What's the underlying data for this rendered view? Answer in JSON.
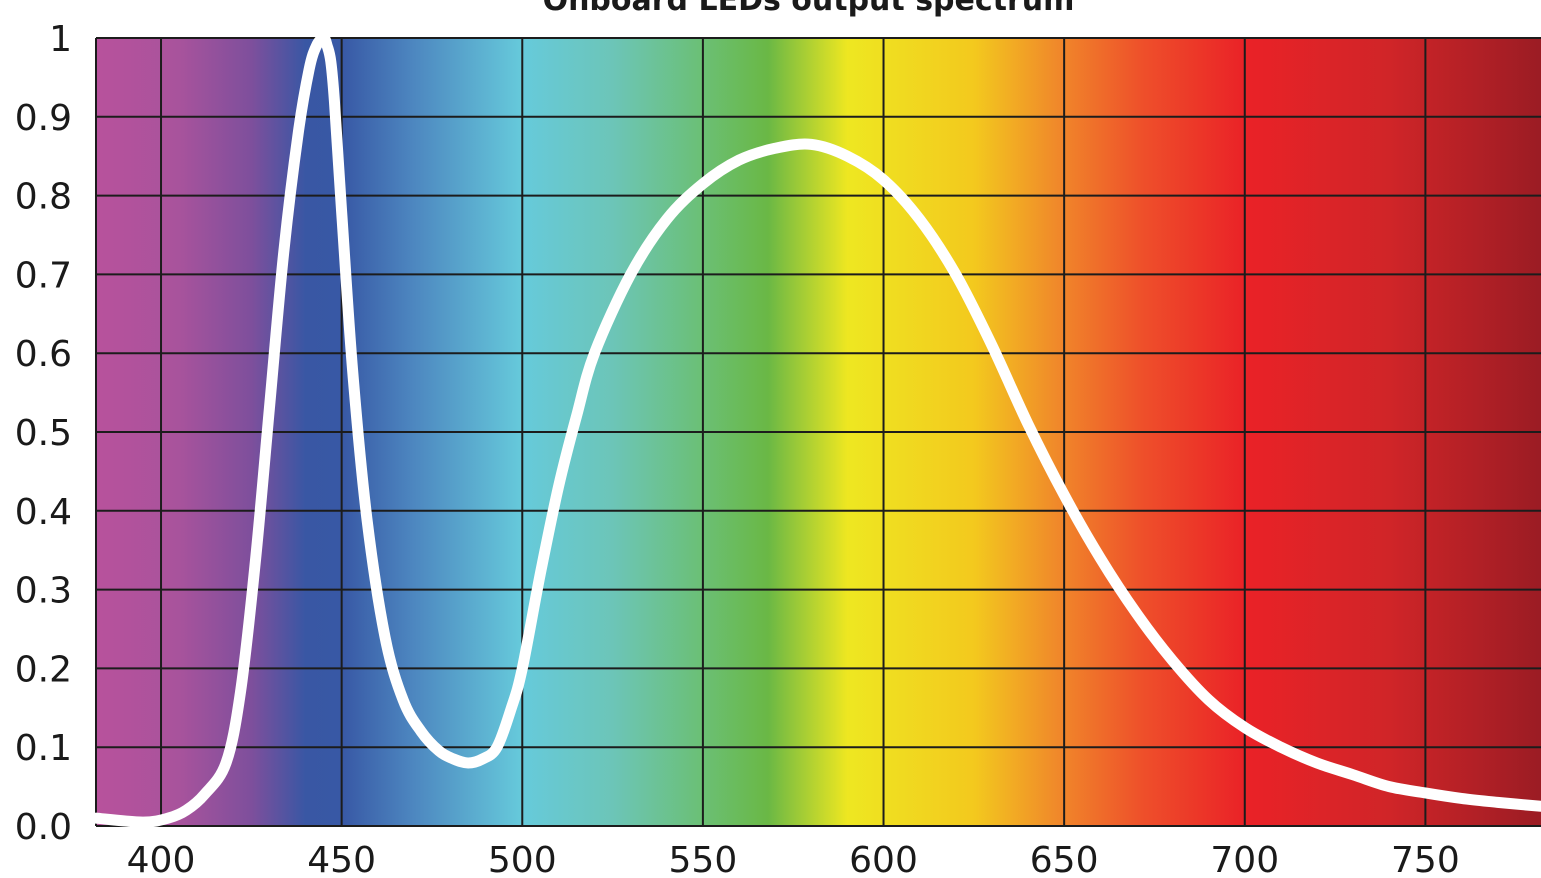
{
  "chart_data": {
    "type": "line",
    "title": "Onboard LEDs output spectrum",
    "xlabel": "",
    "ylabel": "",
    "xlim": [
      382,
      782
    ],
    "ylim": [
      0,
      1
    ],
    "x_ticks": [
      400,
      450,
      500,
      550,
      600,
      650,
      700,
      750
    ],
    "y_ticks": [
      0,
      0.1,
      0.2,
      0.3,
      0.4,
      0.5,
      0.6,
      0.7,
      0.8,
      0.9,
      1
    ],
    "y_tick_labels": [
      "0.0",
      "0.1",
      "0.2",
      "0.3",
      "0.4",
      "0.5",
      "0.6",
      "0.7",
      "0.8",
      "0.9",
      "1"
    ],
    "grid": true,
    "legend": "none",
    "background": "visible light spectrum gradient (violet to deep red)",
    "spectrum_colors": [
      {
        "nm": 382,
        "color": "#b8529c"
      },
      {
        "nm": 405,
        "color": "#a8539c"
      },
      {
        "nm": 425,
        "color": "#7e4f9c"
      },
      {
        "nm": 440,
        "color": "#3957a4"
      },
      {
        "nm": 450,
        "color": "#3858a5"
      },
      {
        "nm": 470,
        "color": "#4d87c0"
      },
      {
        "nm": 500,
        "color": "#66cadb"
      },
      {
        "nm": 525,
        "color": "#6cc5b8"
      },
      {
        "nm": 548,
        "color": "#6bc07a"
      },
      {
        "nm": 568,
        "color": "#6ab845"
      },
      {
        "nm": 590,
        "color": "#eee721"
      },
      {
        "nm": 625,
        "color": "#f3c91e"
      },
      {
        "nm": 648,
        "color": "#f0892a"
      },
      {
        "nm": 672,
        "color": "#ee4f2a"
      },
      {
        "nm": 700,
        "color": "#ea2227"
      },
      {
        "nm": 740,
        "color": "#d02528"
      },
      {
        "nm": 782,
        "color": "#9b1c24"
      }
    ],
    "series": [
      {
        "color": "#ffffff",
        "x": [
          382,
          395,
          402,
          407,
          412,
          418,
          422,
          426,
          430,
          434,
          438,
          441,
          443,
          445,
          446,
          447,
          448,
          450,
          453,
          457,
          462,
          467,
          472,
          477,
          481,
          485,
          489,
          493,
          497,
          500,
          505,
          510,
          515,
          520,
          530,
          540,
          550,
          560,
          570,
          580,
          590,
          600,
          610,
          620,
          630,
          640,
          650,
          660,
          670,
          680,
          690,
          700,
          710,
          720,
          730,
          740,
          750,
          760,
          770,
          782
        ],
        "y": [
          0.01,
          0.005,
          0.01,
          0.02,
          0.04,
          0.08,
          0.17,
          0.33,
          0.53,
          0.73,
          0.88,
          0.96,
          0.99,
          1.0,
          0.99,
          0.97,
          0.92,
          0.78,
          0.58,
          0.39,
          0.24,
          0.16,
          0.12,
          0.095,
          0.085,
          0.08,
          0.085,
          0.1,
          0.15,
          0.2,
          0.32,
          0.43,
          0.52,
          0.6,
          0.7,
          0.77,
          0.815,
          0.845,
          0.86,
          0.865,
          0.85,
          0.82,
          0.77,
          0.7,
          0.61,
          0.51,
          0.42,
          0.34,
          0.27,
          0.21,
          0.16,
          0.125,
          0.1,
          0.08,
          0.065,
          0.05,
          0.042,
          0.035,
          0.03,
          0.025
        ]
      }
    ]
  }
}
